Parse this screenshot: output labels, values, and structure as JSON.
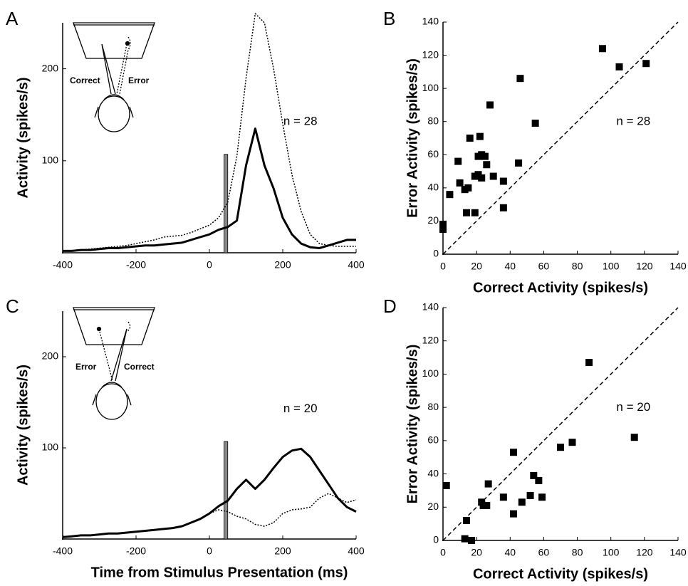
{
  "chart_data": [
    {
      "type": "line",
      "panel": "A",
      "annotation": "n = 28",
      "ylabel": "Activity (spikes/s)",
      "inset_labels": [
        "Correct",
        "Error"
      ],
      "x": [
        -400,
        -375,
        -350,
        -325,
        -300,
        -275,
        -250,
        -225,
        -200,
        -175,
        -150,
        -125,
        -100,
        -75,
        -50,
        -25,
        0,
        25,
        50,
        75,
        100,
        125,
        150,
        175,
        200,
        225,
        250,
        275,
        300,
        325,
        350,
        375,
        400
      ],
      "series": [
        {
          "style": "solid",
          "color": "#000000",
          "values": [
            2,
            2,
            3,
            3,
            4,
            5,
            5,
            6,
            7,
            8,
            8,
            9,
            10,
            11,
            14,
            17,
            20,
            25,
            28,
            35,
            95,
            135,
            95,
            70,
            38,
            20,
            10,
            6,
            5,
            8,
            11,
            14,
            14
          ]
        },
        {
          "style": "dotted",
          "color": "#000000",
          "values": [
            2,
            2,
            3,
            4,
            5,
            6,
            7,
            8,
            10,
            12,
            14,
            17,
            18,
            19,
            22,
            26,
            30,
            38,
            55,
            105,
            190,
            260,
            250,
            200,
            140,
            85,
            45,
            20,
            10,
            8,
            7,
            7,
            7
          ]
        }
      ],
      "marker_band": {
        "x": [
          40,
          50
        ],
        "y": [
          0,
          107
        ],
        "color": "#888888"
      },
      "xlim": [
        -400,
        400
      ],
      "ylim": [
        0,
        250
      ],
      "xticks": [
        -400,
        -200,
        0,
        200,
        400
      ],
      "yticks": [
        100,
        200
      ]
    },
    {
      "type": "scatter",
      "panel": "B",
      "annotation": "n = 28",
      "xlabel": "Correct Activity (spikes/s)",
      "ylabel": "Error Activity (spikes/s)",
      "x": [
        0,
        0,
        4,
        9,
        10,
        13,
        14,
        15,
        16,
        19,
        19,
        21,
        21,
        22,
        23,
        23,
        25,
        26,
        28,
        30,
        36,
        36,
        45,
        46,
        55,
        95,
        105,
        121
      ],
      "values": [
        18,
        15,
        36,
        56,
        43,
        39,
        25,
        40,
        70,
        25,
        47,
        59,
        48,
        71,
        60,
        46,
        59,
        54,
        90,
        47,
        44,
        28,
        55,
        106,
        79,
        124,
        113,
        115
      ],
      "color": "#000000",
      "diagonal": true,
      "xlim": [
        0,
        140
      ],
      "ylim": [
        0,
        140
      ],
      "xticks": [
        0,
        20,
        40,
        60,
        80,
        100,
        120,
        140
      ],
      "yticks": [
        0,
        20,
        40,
        60,
        80,
        100,
        120,
        140
      ]
    },
    {
      "type": "line",
      "panel": "C",
      "annotation": "n = 20",
      "ylabel": "Activity (spikes/s)",
      "xlabel": "Time from Stimulus Presentation (ms)",
      "inset_labels": [
        "Error",
        "Correct"
      ],
      "x": [
        -400,
        -375,
        -350,
        -325,
        -300,
        -275,
        -250,
        -225,
        -200,
        -175,
        -150,
        -125,
        -100,
        -75,
        -50,
        -25,
        0,
        25,
        50,
        75,
        100,
        125,
        150,
        175,
        200,
        225,
        250,
        275,
        300,
        325,
        350,
        375,
        400
      ],
      "series": [
        {
          "style": "solid",
          "color": "#000000",
          "values": [
            2,
            3,
            4,
            4,
            5,
            6,
            6,
            7,
            8,
            9,
            10,
            11,
            12,
            14,
            18,
            22,
            28,
            36,
            42,
            55,
            65,
            55,
            65,
            78,
            90,
            97,
            99,
            90,
            75,
            60,
            45,
            35,
            30
          ]
        },
        {
          "style": "dotted",
          "color": "#000000",
          "values": [
            3,
            3,
            4,
            4,
            5,
            6,
            6,
            7,
            8,
            9,
            10,
            11,
            12,
            14,
            18,
            22,
            28,
            32,
            30,
            25,
            22,
            16,
            14,
            18,
            28,
            32,
            33,
            35,
            45,
            50,
            45,
            40,
            43
          ]
        }
      ],
      "marker_band": {
        "x": [
          40,
          50
        ],
        "y": [
          0,
          107
        ],
        "color": "#888888"
      },
      "xlim": [
        -400,
        400
      ],
      "ylim": [
        0,
        250
      ],
      "xticks": [
        -400,
        -200,
        0,
        200,
        400
      ],
      "yticks": [
        100,
        200
      ]
    },
    {
      "type": "scatter",
      "panel": "D",
      "annotation": "n = 20",
      "xlabel": "Correct Activity (spikes/s)",
      "ylabel": "Error Activity (spikes/s)",
      "x": [
        2,
        14,
        13,
        17,
        23,
        24,
        26,
        27,
        36,
        42,
        42,
        47,
        52,
        54,
        57,
        59,
        70,
        77,
        87,
        114
      ],
      "values": [
        33,
        12,
        1,
        0,
        23,
        21,
        21,
        34,
        26,
        53,
        16,
        23,
        27,
        39,
        36,
        26,
        56,
        59,
        107,
        62
      ],
      "color": "#000000",
      "diagonal": true,
      "xlim": [
        0,
        140
      ],
      "ylim": [
        0,
        140
      ],
      "xticks": [
        0,
        20,
        40,
        60,
        80,
        100,
        120,
        140
      ],
      "yticks": [
        0,
        20,
        40,
        60,
        80,
        100,
        120,
        140
      ]
    }
  ]
}
